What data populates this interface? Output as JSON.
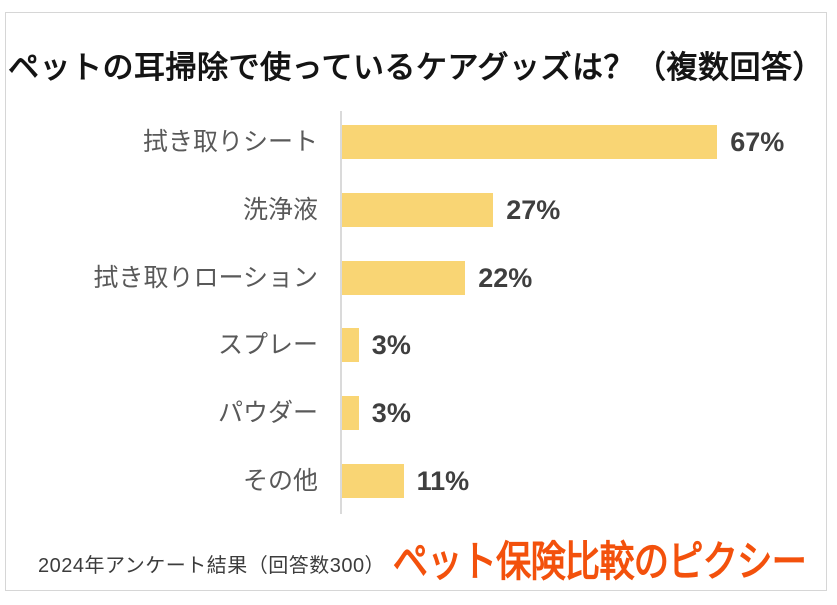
{
  "title": "ペットの耳掃除で使っているケアグッズは？（複数回答）",
  "chart_data": {
    "type": "bar",
    "orientation": "horizontal",
    "title": "ペットの耳掃除で使っているケアグッズは？（複数回答）",
    "categories": [
      "拭き取りシート",
      "洗浄液",
      "拭き取りローション",
      "スプレー",
      "パウダー",
      "その他"
    ],
    "values": [
      67,
      27,
      22,
      3,
      3,
      11
    ],
    "value_labels": [
      "67%",
      "27%",
      "22%",
      "3%",
      "3%",
      "11%"
    ],
    "xlabel": "",
    "ylabel": "",
    "xlim": [
      0,
      87
    ],
    "grid": false,
    "legend": false,
    "bar_color": "#f9d574",
    "category_label_color": "#595959",
    "value_label_color": "#3f3f3f",
    "axis_line_color": "#dadada"
  },
  "footer": {
    "source": "2024年アンケート結果（回答数300）"
  },
  "logo": {
    "text": "ペット保険比較のピクシー",
    "color": "#f3510c"
  }
}
